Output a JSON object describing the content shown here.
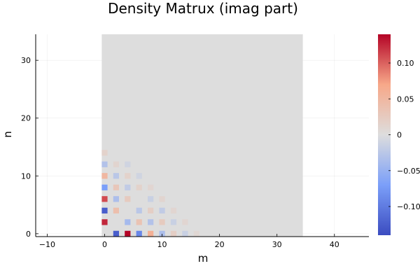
{
  "chart_data": {
    "type": "heatmap",
    "title": "Density Matrux (imag part)",
    "xlabel": "m",
    "ylabel": "n",
    "xlim": [
      -12,
      46
    ],
    "ylim": [
      -0.5,
      34.5
    ],
    "xticks": [
      -10,
      0,
      10,
      20,
      30,
      40
    ],
    "yticks": [
      0,
      10,
      20,
      30
    ],
    "grid": true,
    "legend": "none",
    "matrix_extent": {
      "m": [
        -0.5,
        34.5
      ],
      "n": [
        -0.5,
        34.5
      ]
    },
    "background_value": 0,
    "colorbar": {
      "colormap": "coolwarm",
      "range": [
        -0.14,
        0.14
      ],
      "ticks": [
        0.1,
        0.05,
        0,
        -0.05,
        -0.1
      ],
      "tick_labels": [
        "0.10",
        "0.05",
        "0",
        "−0.05",
        "−0.10"
      ]
    },
    "cells": [
      {
        "m": 0,
        "n": 2,
        "v": 0.125
      },
      {
        "m": 0,
        "n": 4,
        "v": -0.125
      },
      {
        "m": 0,
        "n": 6,
        "v": 0.11
      },
      {
        "m": 0,
        "n": 8,
        "v": -0.07
      },
      {
        "m": 0,
        "n": 10,
        "v": 0.05
      },
      {
        "m": 0,
        "n": 12,
        "v": -0.03
      },
      {
        "m": 0,
        "n": 14,
        "v": 0.015
      },
      {
        "m": 2,
        "n": 0,
        "v": -0.125
      },
      {
        "m": 2,
        "n": 4,
        "v": 0.04
      },
      {
        "m": 2,
        "n": 6,
        "v": -0.035
      },
      {
        "m": 2,
        "n": 8,
        "v": 0.03
      },
      {
        "m": 2,
        "n": 10,
        "v": -0.025
      },
      {
        "m": 2,
        "n": 12,
        "v": 0.012
      },
      {
        "m": 4,
        "n": 0,
        "v": 0.14
      },
      {
        "m": 4,
        "n": 2,
        "v": -0.04
      },
      {
        "m": 4,
        "n": 6,
        "v": 0.025
      },
      {
        "m": 4,
        "n": 8,
        "v": -0.02
      },
      {
        "m": 4,
        "n": 10,
        "v": 0.015
      },
      {
        "m": 4,
        "n": 12,
        "v": -0.01
      },
      {
        "m": 6,
        "n": 0,
        "v": -0.09
      },
      {
        "m": 6,
        "n": 2,
        "v": 0.035
      },
      {
        "m": 6,
        "n": 4,
        "v": -0.025
      },
      {
        "m": 6,
        "n": 8,
        "v": 0.015
      },
      {
        "m": 6,
        "n": 10,
        "v": -0.01
      },
      {
        "m": 8,
        "n": 0,
        "v": 0.06
      },
      {
        "m": 8,
        "n": 2,
        "v": -0.03
      },
      {
        "m": 8,
        "n": 4,
        "v": 0.02
      },
      {
        "m": 8,
        "n": 6,
        "v": -0.015
      },
      {
        "m": 8,
        "n": 8,
        "v": 0.01
      },
      {
        "m": 10,
        "n": 0,
        "v": -0.035
      },
      {
        "m": 10,
        "n": 2,
        "v": 0.025
      },
      {
        "m": 10,
        "n": 4,
        "v": -0.02
      },
      {
        "m": 10,
        "n": 6,
        "v": 0.012
      },
      {
        "m": 12,
        "n": 0,
        "v": 0.02
      },
      {
        "m": 12,
        "n": 2,
        "v": -0.015
      },
      {
        "m": 12,
        "n": 4,
        "v": 0.01
      },
      {
        "m": 14,
        "n": 0,
        "v": -0.015
      },
      {
        "m": 14,
        "n": 2,
        "v": 0.01
      },
      {
        "m": 16,
        "n": 0,
        "v": 0.008
      }
    ]
  }
}
